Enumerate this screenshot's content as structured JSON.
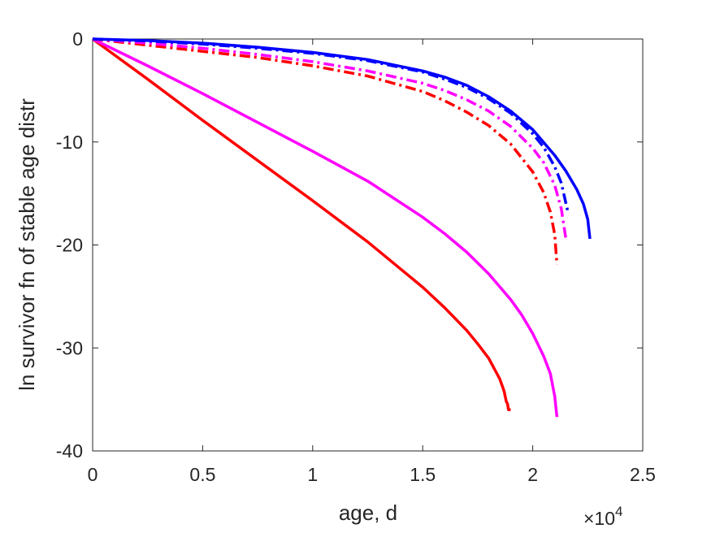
{
  "chart_data": {
    "type": "line",
    "xlabel": "age, d",
    "ylabel": "ln survivor fn of stable age distr",
    "x_multiplier": {
      "base": "×10",
      "exp": "4"
    },
    "xlim": [
      0,
      25000
    ],
    "ylim": [
      -40,
      0
    ],
    "x_ticks": [
      0,
      5000,
      10000,
      15000,
      20000,
      25000
    ],
    "x_tick_labels": [
      "0",
      "0.5",
      "1",
      "1.5",
      "2",
      "2.5"
    ],
    "y_ticks": [
      0,
      -10,
      -20,
      -30,
      -40
    ],
    "y_tick_labels": [
      "0",
      "-10",
      "-20",
      "-30",
      "-40"
    ],
    "grid": false,
    "series": [
      {
        "color": "#ff0000",
        "style": "solid",
        "x": [
          0,
          2500,
          5000,
          7500,
          10000,
          12500,
          15000,
          16000,
          17000,
          17500,
          18000,
          18500,
          18700,
          18800,
          18850,
          18900,
          19000
        ],
        "y": [
          0,
          -3.9,
          -7.9,
          -11.8,
          -15.7,
          -19.7,
          -24.1,
          -26.1,
          -28.3,
          -29.6,
          -31.0,
          -33.0,
          -34.2,
          -35.2,
          -35.4,
          -36.0,
          -36.0
        ]
      },
      {
        "color": "#ff00ff",
        "style": "solid",
        "x": [
          0,
          2500,
          5000,
          7500,
          10000,
          12500,
          15000,
          16000,
          17000,
          18000,
          19000,
          19500,
          20000,
          20500,
          20800,
          21000,
          21100
        ],
        "y": [
          0,
          -2.6,
          -5.3,
          -8.1,
          -10.9,
          -13.8,
          -17.3,
          -18.9,
          -20.7,
          -22.8,
          -25.3,
          -26.8,
          -28.6,
          -30.8,
          -32.5,
          -34.7,
          -36.7
        ]
      },
      {
        "color": "#0000ff",
        "style": "solid",
        "x": [
          0,
          2500,
          5000,
          7500,
          10000,
          12500,
          15000,
          16000,
          17000,
          18000,
          19000,
          20000,
          21000,
          21500,
          22000,
          22300,
          22500,
          22600
        ],
        "y": [
          0,
          -0.15,
          -0.4,
          -0.8,
          -1.3,
          -2.0,
          -3.1,
          -3.7,
          -4.5,
          -5.6,
          -7.0,
          -8.8,
          -11.3,
          -12.8,
          -14.6,
          -16.0,
          -17.5,
          -19.4
        ]
      },
      {
        "color": "#ff0000",
        "style": "dashdot",
        "x": [
          0,
          2500,
          5000,
          7500,
          10000,
          12500,
          15000,
          16000,
          17000,
          18000,
          19000,
          20000,
          20500,
          20800,
          21000,
          21100
        ],
        "y": [
          0,
          -0.6,
          -1.2,
          -1.8,
          -2.6,
          -3.6,
          -5.1,
          -6.0,
          -7.1,
          -8.4,
          -10.2,
          -12.9,
          -14.9,
          -16.8,
          -19.0,
          -21.9
        ]
      },
      {
        "color": "#ff00ff",
        "style": "dashdot",
        "x": [
          0,
          2500,
          5000,
          7500,
          10000,
          12500,
          15000,
          16000,
          17000,
          18000,
          19000,
          20000,
          20500,
          21000,
          21300,
          21500
        ],
        "y": [
          0,
          -0.4,
          -0.9,
          -1.5,
          -2.2,
          -3.1,
          -4.3,
          -5.0,
          -5.9,
          -7.0,
          -8.5,
          -10.6,
          -12.0,
          -14.2,
          -16.5,
          -19.3
        ]
      },
      {
        "color": "#0000ff",
        "style": "dashdot",
        "x": [
          0,
          2500,
          5000,
          7500,
          10000,
          12500,
          15000,
          16000,
          17000,
          18000,
          19000,
          20000,
          20500,
          21000,
          21300,
          21600
        ],
        "y": [
          0,
          -0.2,
          -0.5,
          -0.9,
          -1.4,
          -2.1,
          -3.2,
          -3.9,
          -4.7,
          -5.8,
          -7.2,
          -9.2,
          -10.5,
          -12.4,
          -14.0,
          -16.8
        ]
      }
    ]
  }
}
